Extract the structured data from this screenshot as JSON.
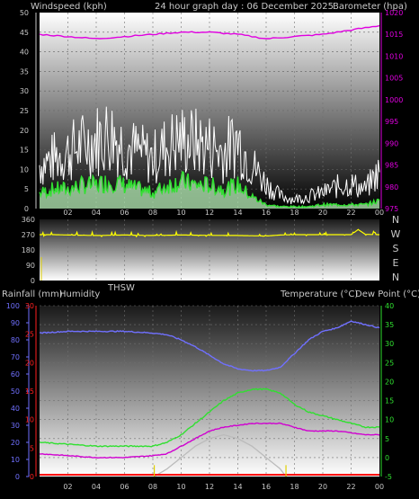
{
  "header": {
    "left_label": "Windspeed (kph)",
    "center_label": "24 hour graph day : 06 December 2025",
    "right_label": "Barometer (hpa)"
  },
  "wind_panel": {
    "left_ticks": [
      "50",
      "45",
      "40",
      "35",
      "30",
      "25",
      "20",
      "15",
      "10",
      "5",
      "0"
    ],
    "right_ticks": [
      "1020",
      "1015",
      "1010",
      "1005",
      "1000",
      "995",
      "990",
      "985",
      "980",
      "975"
    ],
    "x_ticks": [
      "02",
      "04",
      "06",
      "08",
      "10",
      "12",
      "14",
      "16",
      "18",
      "20",
      "22",
      "00"
    ]
  },
  "dir_panel": {
    "left_ticks": [
      "360",
      "270",
      "180",
      "90",
      "0"
    ],
    "compass": [
      "N",
      "W",
      "S",
      "E",
      "N"
    ]
  },
  "lower_header": {
    "rainfall_label": "Rainfall (mm)",
    "humidity_label": "Humidity",
    "thsw_label": "THSW",
    "temperature_label": "Temperature (°C)",
    "dewpoint_label": "Dew Point (°C)"
  },
  "temp_panel": {
    "humidity_ticks": [
      "100",
      "90",
      "80",
      "70",
      "60",
      "50",
      "40",
      "30",
      "20",
      "10",
      "0"
    ],
    "rain_ticks": [
      "30",
      "25",
      "20",
      "15",
      "10",
      "5",
      "0"
    ],
    "temp_ticks": [
      "40",
      "35",
      "30",
      "25",
      "20",
      "15",
      "10",
      "5",
      "0",
      "-5"
    ],
    "x_ticks": [
      "02",
      "04",
      "06",
      "08",
      "10",
      "12",
      "14",
      "16",
      "18",
      "20",
      "22",
      "00"
    ]
  },
  "colors": {
    "barometer": "#e000e0",
    "wind_gust": "#ffffff",
    "wind_avg": "#30e030",
    "direction": "#ffff00",
    "humidity": "#7070ff",
    "temperature": "#30e030",
    "dewpoint": "#d000d0",
    "solar": "#bbbbbb",
    "rain": "#ff0000",
    "rain_axis": "#ff2020",
    "sun_marker": "#e0d000"
  },
  "chart_data": [
    {
      "type": "line",
      "name": "windspeed-barometer",
      "x_range": [
        0,
        24
      ],
      "ylim_left": [
        0,
        50
      ],
      "ylim_right": [
        975,
        1020
      ],
      "series": [
        {
          "name": "barometer",
          "axis": "right",
          "x": [
            0,
            2,
            4,
            6,
            8,
            10,
            12,
            14,
            16,
            18,
            20,
            22,
            24
          ],
          "values": [
            1015,
            1014.5,
            1014,
            1014.5,
            1015,
            1015.5,
            1015.5,
            1015,
            1014,
            1014.5,
            1015,
            1016,
            1017
          ]
        },
        {
          "name": "gust",
          "axis": "left",
          "x": [
            0,
            1,
            2,
            3,
            4,
            5,
            6,
            7,
            8,
            9,
            10,
            11,
            12,
            13,
            14,
            15,
            16,
            17,
            18,
            19,
            20,
            21,
            22,
            23,
            24
          ],
          "values": [
            14,
            16,
            18,
            20,
            22,
            24,
            20,
            18,
            16,
            20,
            22,
            21,
            20,
            18,
            22,
            14,
            8,
            4,
            3,
            4,
            5,
            7,
            8,
            6,
            12
          ]
        },
        {
          "name": "average",
          "axis": "left",
          "x": [
            0,
            1,
            2,
            3,
            4,
            5,
            6,
            7,
            8,
            9,
            10,
            11,
            12,
            13,
            14,
            15,
            16,
            17,
            18,
            19,
            20,
            21,
            22,
            23,
            24
          ],
          "values": [
            4,
            5,
            5,
            6,
            6,
            7,
            6,
            5,
            4,
            6,
            7,
            6,
            6,
            5,
            6,
            3,
            1,
            0.5,
            0.5,
            0.5,
            1,
            1,
            1,
            1,
            2
          ]
        }
      ]
    },
    {
      "type": "line",
      "name": "wind-direction",
      "x_range": [
        0,
        24
      ],
      "ylim": [
        0,
        360
      ],
      "series": [
        {
          "name": "direction",
          "x": [
            0,
            1,
            2,
            4,
            6,
            8,
            10,
            12,
            14,
            16,
            17,
            18,
            20,
            22,
            22.5,
            23,
            24
          ],
          "values": [
            270,
            270,
            268,
            265,
            268,
            265,
            268,
            266,
            265,
            262,
            268,
            270,
            270,
            270,
            300,
            272,
            270
          ]
        }
      ]
    },
    {
      "type": "line",
      "name": "temperature-humidity",
      "x_range": [
        0,
        24
      ],
      "ylim_humidity": [
        0,
        100
      ],
      "ylim_rain": [
        0,
        30
      ],
      "ylim_temp": [
        -5,
        40
      ],
      "series": [
        {
          "name": "humidity",
          "axis": "humidity",
          "x": [
            0,
            2,
            4,
            6,
            8,
            9,
            10,
            11,
            12,
            13,
            14,
            15,
            16,
            17,
            18,
            19,
            20,
            21,
            22,
            23,
            24
          ],
          "values": [
            84,
            85,
            85,
            85,
            84,
            83,
            80,
            76,
            71,
            66,
            63,
            62,
            62,
            64,
            72,
            80,
            85,
            87,
            91,
            89,
            87
          ]
        },
        {
          "name": "temperature",
          "axis": "temp",
          "x": [
            0,
            2,
            4,
            6,
            8,
            9,
            10,
            11,
            12,
            13,
            14,
            15,
            16,
            17,
            18,
            19,
            20,
            21,
            22,
            23,
            24
          ],
          "values": [
            4,
            3.5,
            3,
            3,
            3,
            4,
            6,
            9,
            12,
            15,
            17,
            18,
            18,
            17,
            14,
            12,
            11,
            10,
            9,
            8,
            8
          ]
        },
        {
          "name": "dewpoint",
          "axis": "temp",
          "x": [
            0,
            2,
            4,
            6,
            8,
            9,
            10,
            11,
            12,
            13,
            14,
            15,
            16,
            17,
            18,
            19,
            20,
            21,
            22,
            23,
            24
          ],
          "values": [
            1,
            0.5,
            0,
            0,
            0.5,
            1,
            3,
            5,
            7,
            8,
            8.5,
            9,
            9,
            9,
            8,
            7,
            7,
            7,
            6.5,
            6,
            6
          ]
        },
        {
          "name": "solar",
          "axis": "temp",
          "x": [
            8.1,
            9,
            10,
            11,
            12,
            13,
            14,
            15,
            16,
            17,
            17.4
          ],
          "values": [
            -5,
            -3,
            0,
            3,
            5,
            6,
            5,
            3,
            0,
            -3,
            -5
          ]
        },
        {
          "name": "rain",
          "axis": "rain",
          "x": [
            0,
            24
          ],
          "values": [
            0,
            0
          ]
        }
      ],
      "sun_markers_x": [
        8.1,
        17.4
      ]
    }
  ]
}
